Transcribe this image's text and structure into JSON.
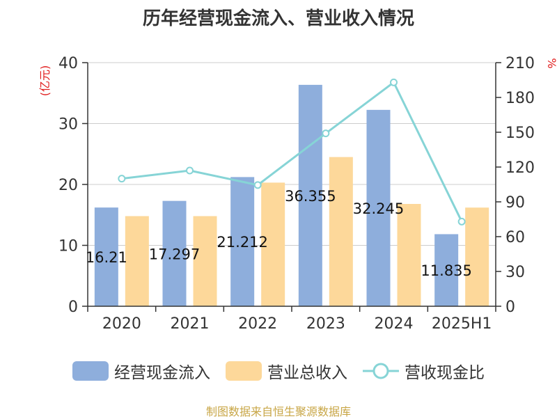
{
  "title": "历年经营现金流入、营业收入情况",
  "source": "制图数据来自恒生聚源数据库",
  "chart_data": {
    "type": "bar",
    "title": "历年经营现金流入、营业收入情况",
    "categories": [
      "2020",
      "2021",
      "2022",
      "2023",
      "2024",
      "2025H1"
    ],
    "y_left": {
      "label": "(亿元)",
      "ticks": [
        "0",
        "10",
        "20",
        "30",
        "40"
      ],
      "range": [
        0,
        40
      ]
    },
    "y_right": {
      "label": "%",
      "ticks": [
        "0",
        "30",
        "60",
        "90",
        "120",
        "150",
        "180",
        "210"
      ],
      "range": [
        0,
        210
      ]
    },
    "series": [
      {
        "name": "经营现金流入",
        "type": "bar",
        "axis": "left",
        "color": "#8eaedc",
        "values": [
          16.21,
          17.297,
          21.212,
          36.355,
          32.245,
          11.835
        ],
        "labels": [
          "16.21",
          "17.297",
          "21.212",
          "36.355",
          "32.245",
          "11.835"
        ]
      },
      {
        "name": "营业总收入",
        "type": "bar",
        "axis": "left",
        "color": "#fdd89a",
        "values": [
          14.8,
          14.8,
          20.3,
          24.5,
          16.8,
          16.2
        ]
      },
      {
        "name": "营收现金比",
        "type": "line",
        "axis": "right",
        "color": "#86d4d6",
        "values": [
          110,
          117,
          104.5,
          149,
          193,
          73
        ]
      }
    ],
    "grid": true,
    "legend_position": "bottom"
  }
}
